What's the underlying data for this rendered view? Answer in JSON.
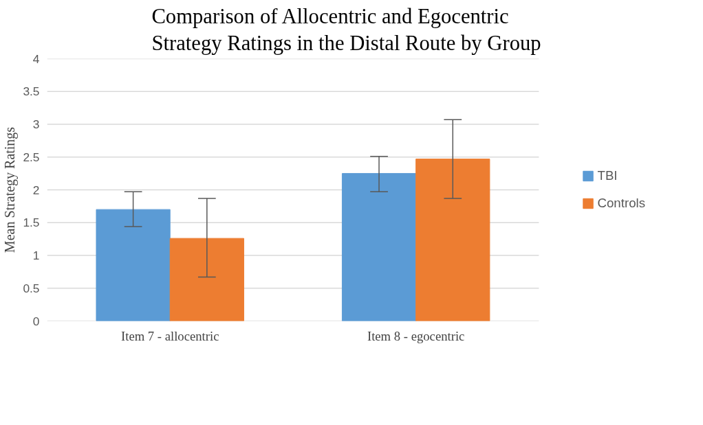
{
  "chart_data": {
    "type": "bar",
    "title": "Comparison of Allocentric and Egocentric\nStrategy Ratings in the Distal Route by Group",
    "ylabel": "Mean Strategy Ratings",
    "categories": [
      "Item 7 - allocentric",
      "Item 8 - egocentric"
    ],
    "series": [
      {
        "name": "TBI",
        "color": "#5b9bd5",
        "values": [
          1.7,
          2.25
        ],
        "errors": [
          [
            1.44,
            1.97
          ],
          [
            1.97,
            2.51
          ]
        ]
      },
      {
        "name": "Controls",
        "color": "#ed7d31",
        "values": [
          1.26,
          2.47
        ],
        "errors": [
          [
            0.67,
            1.87
          ],
          [
            1.87,
            3.07
          ]
        ]
      }
    ],
    "ylim": [
      0,
      4
    ],
    "yticks": [
      0,
      0.5,
      1,
      1.5,
      2,
      2.5,
      3,
      3.5,
      4
    ],
    "grid": "y",
    "legend": "right"
  }
}
